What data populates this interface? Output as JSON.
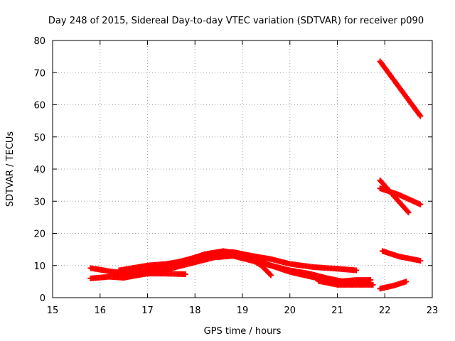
{
  "chart_data": {
    "type": "scatter",
    "title": "Day 248 of 2015, Sidereal Day-to-day VTEC variation (SDTVAR) for receiver p090",
    "xlabel": "GPS time / hours",
    "ylabel": "SDTVAR / TECUs",
    "xlim": [
      15,
      23
    ],
    "ylim": [
      0,
      80
    ],
    "xticks": [
      15,
      16,
      17,
      18,
      19,
      20,
      21,
      22,
      23
    ],
    "yticks": [
      0,
      10,
      20,
      30,
      40,
      50,
      60,
      70,
      80
    ],
    "grid": true,
    "marker": "plus",
    "series_color": "#ff0000",
    "series": [
      {
        "points": [
          [
            15.8,
            9.2
          ],
          [
            16.2,
            8.2
          ],
          [
            16.6,
            7.5
          ],
          [
            17.0,
            8.5
          ],
          [
            17.5,
            10.5
          ],
          [
            18.0,
            12.5
          ],
          [
            18.4,
            14.0
          ],
          [
            18.8,
            14.2
          ],
          [
            19.2,
            13.0
          ],
          [
            19.6,
            12.0
          ],
          [
            20.0,
            10.5
          ],
          [
            20.5,
            9.5
          ],
          [
            21.0,
            9.0
          ],
          [
            21.4,
            8.5
          ]
        ]
      },
      {
        "points": [
          [
            15.8,
            6.0
          ],
          [
            16.2,
            6.5
          ],
          [
            16.5,
            6.2
          ],
          [
            16.8,
            7.0
          ],
          [
            17.2,
            8.0
          ],
          [
            17.6,
            9.5
          ],
          [
            18.0,
            11.0
          ],
          [
            18.4,
            12.5
          ],
          [
            18.8,
            13.0
          ],
          [
            19.2,
            11.5
          ],
          [
            19.6,
            10.0
          ],
          [
            20.0,
            8.5
          ],
          [
            20.4,
            7.5
          ],
          [
            20.8,
            6.0
          ],
          [
            21.2,
            4.8
          ],
          [
            21.7,
            4.5
          ]
        ]
      },
      {
        "points": [
          [
            16.4,
            8.5
          ],
          [
            16.8,
            9.5
          ],
          [
            17.0,
            10.0
          ],
          [
            17.4,
            10.5
          ],
          [
            17.8,
            11.5
          ],
          [
            18.2,
            13.5
          ],
          [
            18.6,
            14.5
          ],
          [
            19.0,
            13.5
          ],
          [
            19.4,
            10.0
          ],
          [
            19.6,
            7.0
          ]
        ]
      },
      {
        "points": [
          [
            16.3,
            7.2
          ],
          [
            16.8,
            7.5
          ],
          [
            17.3,
            7.5
          ],
          [
            17.8,
            7.3
          ]
        ]
      },
      {
        "points": [
          [
            18.3,
            13.2
          ],
          [
            18.8,
            13.6
          ],
          [
            19.4,
            11.0
          ],
          [
            20.0,
            8.0
          ],
          [
            20.6,
            6.0
          ],
          [
            21.0,
            5.0
          ],
          [
            21.4,
            5.5
          ],
          [
            21.7,
            5.5
          ]
        ]
      },
      {
        "points": [
          [
            20.6,
            5.2
          ],
          [
            21.0,
            4.0
          ],
          [
            21.4,
            4.0
          ],
          [
            21.75,
            4.0
          ]
        ]
      },
      {
        "points": [
          [
            21.9,
            73.5
          ],
          [
            22.75,
            56.5
          ]
        ]
      },
      {
        "points": [
          [
            21.9,
            36.5
          ],
          [
            22.5,
            26.5
          ]
        ]
      },
      {
        "points": [
          [
            21.9,
            34.0
          ],
          [
            22.3,
            32.0
          ],
          [
            22.75,
            29.0
          ]
        ]
      },
      {
        "points": [
          [
            21.95,
            14.5
          ],
          [
            22.3,
            12.8
          ],
          [
            22.75,
            11.5
          ]
        ]
      },
      {
        "points": [
          [
            21.9,
            2.8
          ],
          [
            22.2,
            3.8
          ],
          [
            22.45,
            5.0
          ]
        ]
      }
    ]
  }
}
